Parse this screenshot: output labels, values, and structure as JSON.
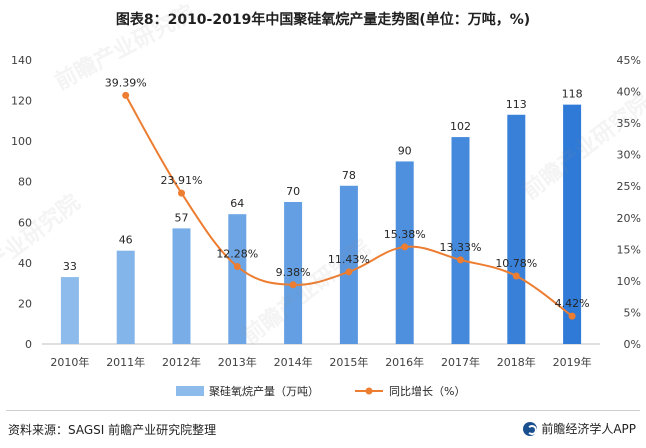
{
  "title": "图表8：2010-2019年中国聚硅氧烷产量走势图(单位：万吨，%)",
  "source": "资料来源：SAGSI 前瞻产业研究院整理",
  "brand": "前瞻经济学人APP",
  "watermark": "前瞻产业研究院",
  "chart_data": {
    "type": "bar",
    "categories": [
      "2010年",
      "2011年",
      "2012年",
      "2013年",
      "2014年",
      "2015年",
      "2016年",
      "2017年",
      "2018年",
      "2019年"
    ],
    "series": [
      {
        "name": "聚硅氧烷产量（万吨）",
        "type": "bar",
        "axis": "left",
        "values": [
          33,
          46,
          57,
          64,
          70,
          78,
          90,
          102,
          113,
          118
        ],
        "labels": [
          "33",
          "46",
          "57",
          "64",
          "70",
          "78",
          "90",
          "102",
          "113",
          "118"
        ]
      },
      {
        "name": "同比增长（%）",
        "type": "line",
        "axis": "right",
        "values": [
          null,
          39.39,
          23.91,
          12.28,
          9.38,
          11.43,
          15.38,
          13.33,
          10.78,
          4.42
        ],
        "labels": [
          "",
          "39.39%",
          "23.91%",
          "12.28%",
          "9.38%",
          "11.43%",
          "15.38%",
          "13.33%",
          "10.78%",
          "4.42%"
        ]
      }
    ],
    "ylim": [
      0,
      140
    ],
    "y_ticks": [
      "0",
      "20",
      "40",
      "60",
      "80",
      "100",
      "120",
      "140"
    ],
    "y2lim": [
      0,
      45
    ],
    "y2_ticks": [
      "0%",
      "5%",
      "10%",
      "15%",
      "20%",
      "25%",
      "30%",
      "35%",
      "40%",
      "45%"
    ],
    "legend_position": "bottom",
    "grid": false,
    "colors": {
      "bar_light": "#8dbcec",
      "bar_dark": "#2f7ad6",
      "line": "#ed7d31",
      "axis": "#bfbfbf",
      "text": "#404040"
    }
  }
}
